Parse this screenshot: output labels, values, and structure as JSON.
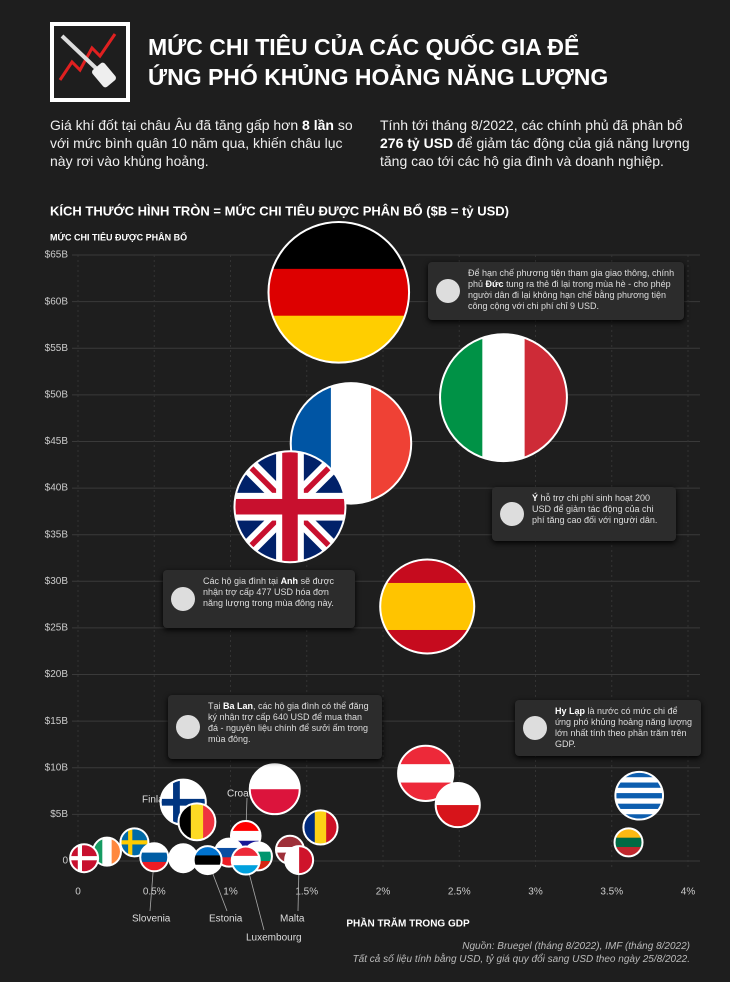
{
  "header": {
    "title": [
      "MỨC CHI TIÊU CỦA CÁC QUỐC GIA ĐỂ",
      "ỨNG PHÓ KHỦNG HOẢNG NĂNG LƯỢNG"
    ],
    "intro": [
      [
        {
          "text": "Giá khí đốt tại châu Âu đã tăng gấp hơn ",
          "bold": false
        },
        {
          "text": "8 lần",
          "bold": true
        },
        {
          "text": " so với mức bình quân 10 năm qua, khiến châu lục này rơi vào khủng hoảng.",
          "bold": false
        }
      ],
      [
        {
          "text": "Tính tới tháng 8/2022, các chính phủ đã phân bổ ",
          "bold": false
        },
        {
          "text": "276 tỷ USD",
          "bold": true
        },
        {
          "text": " để giảm tác động của giá năng lượng tăng cao tới các hộ gia đình và doanh nghiệp.",
          "bold": false
        }
      ]
    ]
  },
  "chart_data": {
    "type": "scatter",
    "subtitle": "KÍCH THƯỚC HÌNH TRÒN = MỨC CHI TIÊU ĐƯỢC PHÂN BỔ ($B = tỷ USD)",
    "y_label": "MỨC CHI TIÊU ĐƯỢC PHÂN BỔ",
    "x_label": "PHẦN TRĂM TRONG GDP",
    "xlim": [
      0,
      4
    ],
    "ylim": [
      0,
      65
    ],
    "xticks": [
      0,
      {
        "value": 0.5,
        "label": "0.5%"
      },
      {
        "value": 1,
        "label": "1%"
      },
      {
        "value": 1.5,
        "label": "1.5%"
      },
      {
        "value": 2,
        "label": "2%"
      },
      {
        "value": 2.5,
        "label": "2.5%"
      },
      {
        "value": 3,
        "label": "3%"
      },
      {
        "value": 3.5,
        "label": "3.5%"
      },
      {
        "value": 4,
        "label": "4%"
      }
    ],
    "yticks": [
      0,
      {
        "value": 5,
        "label": "$5B"
      },
      {
        "value": 10,
        "label": "$10B"
      },
      {
        "value": 15,
        "label": "$15B"
      },
      {
        "value": 20,
        "label": "$20B"
      },
      {
        "value": 25,
        "label": "$25B"
      },
      {
        "value": 30,
        "label": "$30B"
      },
      {
        "value": 35,
        "label": "$35B"
      },
      {
        "value": 40,
        "label": "$40B"
      },
      {
        "value": 45,
        "label": "$45B"
      },
      {
        "value": 50,
        "label": "$50B"
      },
      {
        "value": 55,
        "label": "$55B"
      },
      {
        "value": 60,
        "label": "$60B"
      },
      {
        "value": 65,
        "label": "$65B"
      }
    ],
    "grid": true,
    "x": [
      1.71,
      2.79,
      1.79,
      1.39,
      2.29,
      2.28,
      1.29,
      3.68,
      2.49,
      0.69,
      0.78,
      1.59,
      1.1,
      3.61,
      0.37,
      1.39,
      0.19,
      0.99,
      1.18,
      0.5,
      0.69,
      0.04,
      0.85,
      1.1,
      1.45
    ],
    "y": [
      61.0,
      49.7,
      44.8,
      38.0,
      27.3,
      9.4,
      7.7,
      7.0,
      6.0,
      6.3,
      4.2,
      3.6,
      2.7,
      2.0,
      2.0,
      1.2,
      1.0,
      0.9,
      0.5,
      0.4,
      0.3,
      0.3,
      0.1,
      0.05,
      0.1
    ],
    "labels": [
      null,
      null,
      null,
      null,
      null,
      null,
      null,
      null,
      null,
      "Finland",
      null,
      null,
      "Croatia",
      null,
      null,
      null,
      null,
      null,
      null,
      "Slovenia",
      null,
      null,
      "Estonia",
      "Luxembourg",
      "Malta"
    ],
    "flags": [
      {
        "kind": "h",
        "colors": [
          "#000000",
          "#dd0000",
          "#ffce00"
        ]
      },
      {
        "kind": "v",
        "colors": [
          "#009246",
          "#ffffff",
          "#ce2b37"
        ]
      },
      {
        "kind": "v",
        "colors": [
          "#0055a4",
          "#ffffff",
          "#ef4135"
        ]
      },
      {
        "kind": "uk",
        "colors": [
          "#012169",
          "#ffffff",
          "#c8102e"
        ]
      },
      {
        "kind": "h",
        "colors": [
          "#c60b1e",
          "#ffc400",
          "#ffc400",
          "#c60b1e"
        ]
      },
      {
        "kind": "h",
        "colors": [
          "#ed2939",
          "#ffffff",
          "#ed2939"
        ]
      },
      {
        "kind": "h",
        "colors": [
          "#ffffff",
          "#dc143c"
        ]
      },
      {
        "kind": "h",
        "colors": [
          "#0d5eaf",
          "#ffffff",
          "#0d5eaf",
          "#ffffff",
          "#0d5eaf",
          "#ffffff",
          "#0d5eaf",
          "#ffffff",
          "#0d5eaf"
        ]
      },
      {
        "kind": "h",
        "colors": [
          "#ffffff",
          "#d7141a"
        ]
      },
      {
        "kind": "cross",
        "colors": [
          "#ffffff",
          "#003580"
        ]
      },
      {
        "kind": "v",
        "colors": [
          "#000000",
          "#fdda24",
          "#ef3340"
        ]
      },
      {
        "kind": "v",
        "colors": [
          "#002b7f",
          "#fcd116",
          "#ce1126"
        ]
      },
      {
        "kind": "h",
        "colors": [
          "#ff0000",
          "#ffffff",
          "#171796"
        ]
      },
      {
        "kind": "h",
        "colors": [
          "#fdb913",
          "#006a44",
          "#c1272d"
        ]
      },
      {
        "kind": "cross",
        "colors": [
          "#006aa7",
          "#fecc00"
        ]
      },
      {
        "kind": "h",
        "colors": [
          "#9e3039",
          "#9e3039",
          "#ffffff",
          "#9e3039",
          "#9e3039"
        ]
      },
      {
        "kind": "v",
        "colors": [
          "#169b62",
          "#ffffff",
          "#ff883e"
        ]
      },
      {
        "kind": "h",
        "colors": [
          "#ffffff",
          "#0b4ea2",
          "#ee1c25"
        ]
      },
      {
        "kind": "h",
        "colors": [
          "#ffffff",
          "#00966e",
          "#d62612"
        ]
      },
      {
        "kind": "h",
        "colors": [
          "#ffffff",
          "#005da4",
          "#ed1c24"
        ]
      },
      {
        "kind": "h",
        "colors": [
          "#ffffff"
        ]
      },
      {
        "kind": "cross",
        "colors": [
          "#c8102e",
          "#ffffff"
        ]
      },
      {
        "kind": "h",
        "colors": [
          "#0072ce",
          "#000000",
          "#ffffff"
        ]
      },
      {
        "kind": "h",
        "colors": [
          "#ed2939",
          "#ffffff",
          "#00a1de"
        ]
      },
      {
        "kind": "v",
        "colors": [
          "#ffffff",
          "#cf142b"
        ]
      }
    ],
    "annotations": [
      [
        {
          "text": "Để hạn chế phương tiện tham gia giao thông, chính phủ ",
          "bold": false
        },
        {
          "text": "Đức",
          "bold": true
        },
        {
          "text": " tung ra thẻ đi lại trong mùa hè - cho phép người dân đi lại không hạn chế bằng phương tiện công cộng với chi phí chỉ 9 USD.",
          "bold": false
        }
      ],
      [
        {
          "text": "Ý",
          "bold": true
        },
        {
          "text": " hỗ trợ chi phí sinh hoạt 200 USD để giảm tác động của chi phí tăng cao đối với người dân.",
          "bold": false
        }
      ],
      [
        {
          "text": "Các hộ gia đình tại ",
          "bold": false
        },
        {
          "text": "Anh",
          "bold": true
        },
        {
          "text": " sẽ được nhận trợ cấp 477 USD hóa đơn năng lượng trong mùa đông này.",
          "bold": false
        }
      ],
      [
        {
          "text": "Tại ",
          "bold": false
        },
        {
          "text": "Ba Lan",
          "bold": true
        },
        {
          "text": ", các hộ gia đình có thể đăng ký nhận trợ cấp 640 USD để mua than đá - nguyên liệu chính để sưởi ấm trong mùa đông.",
          "bold": false
        }
      ],
      [
        {
          "text": "Hy Lạp",
          "bold": true
        },
        {
          "text": " là nước có mức chi để ứng phó khủng hoảng năng lượng lớn nhất tính theo phần trăm trên GDP.",
          "bold": false
        }
      ]
    ],
    "source": [
      "Nguồn: Bruegel (tháng 8/2022), IMF (tháng 8/2022)",
      "Tất cả số liệu tính bằng USD, tỷ giá quy đổi sang USD theo ngày 25/8/2022."
    ]
  }
}
